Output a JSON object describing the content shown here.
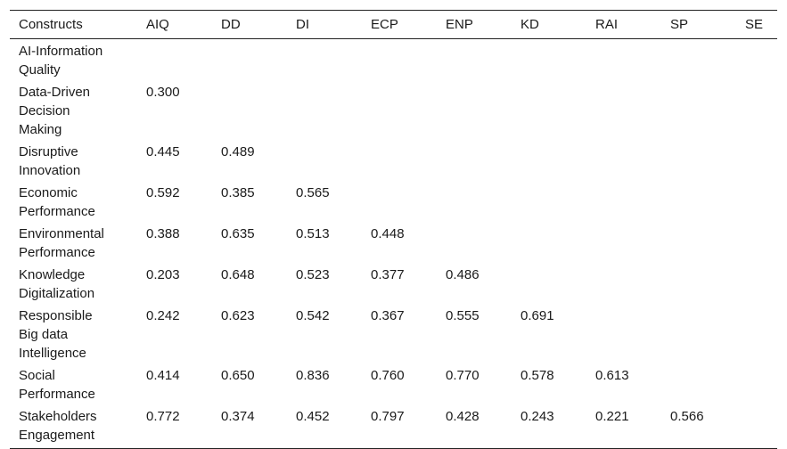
{
  "table": {
    "headers": [
      "Constructs",
      "AIQ",
      "DD",
      "DI",
      "ECP",
      "ENP",
      "KD",
      "RAI",
      "SP",
      "SE"
    ],
    "rows": [
      {
        "label_lines": [
          "AI-Information",
          "Quality"
        ],
        "values": [
          "",
          "",
          "",
          "",
          "",
          "",
          "",
          "",
          ""
        ]
      },
      {
        "label_lines": [
          "Data-Driven",
          "Decision",
          "Making"
        ],
        "values": [
          "0.300",
          "",
          "",
          "",
          "",
          "",
          "",
          "",
          ""
        ]
      },
      {
        "label_lines": [
          "Disruptive",
          "Innovation"
        ],
        "values": [
          "0.445",
          "0.489",
          "",
          "",
          "",
          "",
          "",
          "",
          ""
        ]
      },
      {
        "label_lines": [
          "Economic",
          "Performance"
        ],
        "values": [
          "0.592",
          "0.385",
          "0.565",
          "",
          "",
          "",
          "",
          "",
          ""
        ]
      },
      {
        "label_lines": [
          "Environmental",
          "Performance"
        ],
        "values": [
          "0.388",
          "0.635",
          "0.513",
          "0.448",
          "",
          "",
          "",
          "",
          ""
        ]
      },
      {
        "label_lines": [
          "Knowledge",
          "Digitalization"
        ],
        "values": [
          "0.203",
          "0.648",
          "0.523",
          "0.377",
          "0.486",
          "",
          "",
          "",
          ""
        ]
      },
      {
        "label_lines": [
          "Responsible",
          "Big data",
          "Intelligence"
        ],
        "values": [
          "0.242",
          "0.623",
          "0.542",
          "0.367",
          "0.555",
          "0.691",
          "",
          "",
          ""
        ]
      },
      {
        "label_lines": [
          "Social",
          "Performance"
        ],
        "values": [
          "0.414",
          "0.650",
          "0.836",
          "0.760",
          "0.770",
          "0.578",
          "0.613",
          "",
          ""
        ]
      },
      {
        "label_lines": [
          "Stakeholders",
          "Engagement"
        ],
        "values": [
          "0.772",
          "0.374",
          "0.452",
          "0.797",
          "0.428",
          "0.243",
          "0.221",
          "0.566",
          ""
        ]
      }
    ]
  }
}
